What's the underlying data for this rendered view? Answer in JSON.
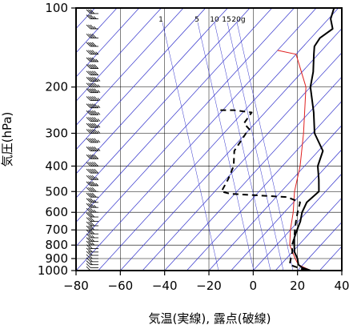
{
  "chart_data": {
    "type": "line",
    "xlabel": "気温(実線), 露点(破線)",
    "ylabel": "気圧(hPa)",
    "xlim": [
      -80,
      40
    ],
    "ylim": [
      1000,
      100
    ],
    "y_scale": "log",
    "x_ticks": [
      "−80",
      "−60",
      "−40",
      "−20",
      "0",
      "20",
      "40"
    ],
    "x_tick_values": [
      -80,
      -60,
      -40,
      -20,
      0,
      20,
      40
    ],
    "y_ticks": [
      "100",
      "200",
      "300",
      "400",
      "500",
      "600",
      "700",
      "800",
      "900",
      "1000"
    ],
    "y_tick_values": [
      100,
      200,
      300,
      400,
      500,
      600,
      700,
      800,
      900,
      1000
    ],
    "mixing_ratio_labels": [
      "1",
      "5",
      "10",
      "15",
      "20g"
    ],
    "mixing_ratio_values": [
      1,
      5,
      10,
      15,
      20
    ],
    "colors": {
      "isotherm": "#3333cc",
      "grid": "#000000",
      "reference": "#e02020",
      "temperature": "#000000",
      "dewpoint": "#000000",
      "barbs": "#000000"
    },
    "series": [
      {
        "style": "solid",
        "color": "#000000",
        "points": [
          {
            "p": 1000,
            "t": 26
          },
          {
            "p": 975,
            "t": 21
          },
          {
            "p": 950,
            "t": 18
          },
          {
            "p": 900,
            "t": 15
          },
          {
            "p": 850,
            "t": 11
          },
          {
            "p": 800,
            "t": 8
          },
          {
            "p": 750,
            "t": 5
          },
          {
            "p": 700,
            "t": 3
          },
          {
            "p": 650,
            "t": 1
          },
          {
            "p": 600,
            "t": -2
          },
          {
            "p": 550,
            "t": -4
          },
          {
            "p": 500,
            "t": -3
          },
          {
            "p": 450,
            "t": -8
          },
          {
            "p": 400,
            "t": -14
          },
          {
            "p": 350,
            "t": -18
          },
          {
            "p": 300,
            "t": -29
          },
          {
            "p": 250,
            "t": -38
          },
          {
            "p": 200,
            "t": -50
          },
          {
            "p": 175,
            "t": -55
          },
          {
            "p": 150,
            "t": -62
          },
          {
            "p": 140,
            "t": -65
          },
          {
            "p": 130,
            "t": -66
          },
          {
            "p": 120,
            "t": -64
          },
          {
            "p": 110,
            "t": -69
          },
          {
            "p": 100,
            "t": -72
          }
        ]
      },
      {
        "style": "dashed",
        "color": "#000000",
        "points": [
          {
            "p": 1000,
            "t": 24
          },
          {
            "p": 975,
            "t": 19
          },
          {
            "p": 950,
            "t": 14
          },
          {
            "p": 900,
            "t": 12
          },
          {
            "p": 850,
            "t": 10
          },
          {
            "p": 800,
            "t": 7
          },
          {
            "p": 750,
            "t": 5
          },
          {
            "p": 700,
            "t": 2
          },
          {
            "p": 650,
            "t": -1
          },
          {
            "p": 600,
            "t": -4
          },
          {
            "p": 550,
            "t": -7
          },
          {
            "p": 525,
            "t": -15
          },
          {
            "p": 510,
            "t": -42
          },
          {
            "p": 500,
            "t": -47
          },
          {
            "p": 450,
            "t": -49
          },
          {
            "p": 400,
            "t": -52
          },
          {
            "p": 350,
            "t": -58
          },
          {
            "p": 300,
            "t": -60
          },
          {
            "p": 290,
            "t": -60
          },
          {
            "p": 275,
            "t": -65
          },
          {
            "p": 250,
            "t": -66
          },
          {
            "p": 245,
            "t": -75
          },
          {
            "p": 245,
            "t": -82
          }
        ]
      }
    ],
    "reference_line": {
      "color": "#e02020",
      "points": [
        {
          "p": 1000,
          "t": 26
        },
        {
          "p": 950,
          "t": 18
        },
        {
          "p": 900,
          "t": 14
        },
        {
          "p": 800,
          "t": 6
        },
        {
          "p": 700,
          "t": 0
        },
        {
          "p": 600,
          "t": -6
        },
        {
          "p": 500,
          "t": -14
        },
        {
          "p": 400,
          "t": -22
        },
        {
          "p": 300,
          "t": -34
        },
        {
          "p": 200,
          "t": -52
        },
        {
          "p": 150,
          "t": -70
        },
        {
          "p": 145,
          "t": -80
        }
      ]
    },
    "wind_barbs": {
      "temperature": -73,
      "pressures": [
        1000,
        975,
        950,
        925,
        900,
        875,
        850,
        825,
        800,
        775,
        750,
        725,
        700,
        675,
        650,
        625,
        600,
        575,
        550,
        525,
        500,
        475,
        450,
        425,
        400,
        375,
        350,
        325,
        300,
        285,
        270,
        255,
        240,
        225,
        210,
        200,
        190,
        180,
        170,
        160,
        150,
        140,
        130,
        120,
        110,
        105,
        100
      ],
      "speed_kt": [
        10,
        10,
        15,
        15,
        15,
        20,
        20,
        20,
        25,
        25,
        25,
        30,
        30,
        30,
        30,
        30,
        35,
        35,
        35,
        40,
        40,
        45,
        45,
        50,
        50,
        50,
        55,
        55,
        55,
        55,
        55,
        60,
        60,
        60,
        60,
        55,
        55,
        50,
        50,
        45,
        45,
        40,
        40,
        35,
        35,
        30,
        30
      ]
    }
  }
}
